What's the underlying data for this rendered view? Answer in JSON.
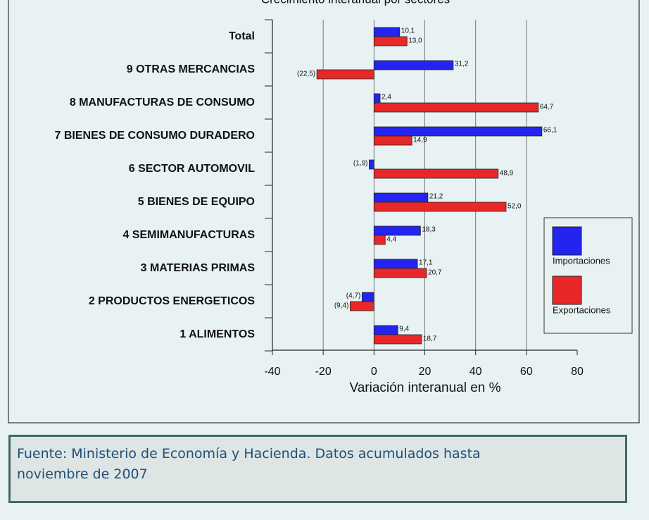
{
  "chart_data": {
    "type": "barh",
    "title": "Crecimiento interanual por sectores",
    "xlabel": "Variación interanual en %",
    "categories": [
      "Total",
      "9 OTRAS MERCANCIAS",
      "8 MANUFACTURAS DE CONSUMO",
      "7 BIENES DE CONSUMO DURADERO",
      "6 SECTOR AUTOMOVIL",
      "5 BIENES DE EQUIPO",
      "4 SEMIMANUFACTURAS",
      "3 MATERIAS PRIMAS",
      "2 PRODUCTOS ENERGETICOS",
      "1 ALIMENTOS"
    ],
    "series": [
      {
        "name": "Importaciones",
        "color": "#2424f0",
        "values": [
          10.1,
          31.2,
          2.4,
          66.1,
          -1.9,
          21.2,
          18.3,
          17.1,
          -4.7,
          9.4
        ],
        "value_labels": [
          "10,1",
          "31,2",
          "2,4",
          "66,1",
          "(1,9)",
          "21,2",
          "18,3",
          "17,1",
          "(4,7)",
          "9,4"
        ]
      },
      {
        "name": "Exportaciones",
        "color": "#e82828",
        "values": [
          13.0,
          -22.5,
          64.7,
          14.9,
          48.9,
          52.0,
          4.4,
          20.7,
          -9.4,
          18.7
        ],
        "value_labels": [
          "13,0",
          "(22,5)",
          "64,7",
          "14,9",
          "48,9",
          "52,0",
          "4,4",
          "20,7",
          "(9,4)",
          "18,7"
        ]
      }
    ],
    "xlim": [
      -40,
      80
    ],
    "xticks": [
      -40,
      -20,
      0,
      20,
      40,
      60,
      80
    ],
    "grid": true,
    "legend": "right"
  },
  "caption": "Fuente: Ministerio de Economía y Hacienda. Datos acumulados hasta noviembre de 2007"
}
